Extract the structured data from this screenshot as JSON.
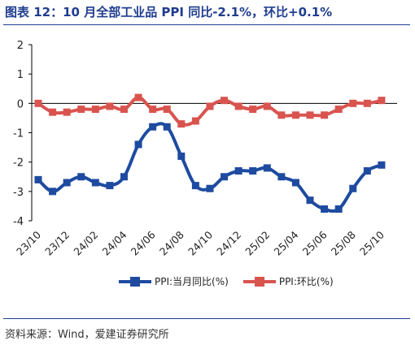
{
  "title": "图表 12：10 月全部工业品 PPI 同比-2.1%，环比+0.1%",
  "source": "资料来源：Wind，爱建证券研究所",
  "colors": {
    "title": "#1F3D8F",
    "yoy": "#1E4BA0",
    "mom": "#D9544F",
    "axis": "#000000"
  },
  "chart_data": {
    "type": "line",
    "x": [
      "23/10",
      "23/11",
      "23/12",
      "24/01",
      "24/02",
      "24/03",
      "24/04",
      "24/05",
      "24/06",
      "24/07",
      "24/08",
      "24/09",
      "24/10",
      "24/11",
      "24/12",
      "25/01",
      "25/02",
      "25/03",
      "25/04",
      "25/05",
      "25/06",
      "25/07",
      "25/08",
      "25/09",
      "25/10"
    ],
    "x_tick_labels": [
      "23/10",
      "23/12",
      "24/02",
      "24/04",
      "24/06",
      "24/08",
      "24/10",
      "24/12",
      "25/02",
      "25/04",
      "25/06",
      "25/08",
      "25/10"
    ],
    "y_tick_labels": [
      "2",
      "1",
      "0",
      "-1",
      "-2",
      "-3",
      "-4"
    ],
    "ylim": [
      -4,
      2
    ],
    "series": [
      {
        "name": "PPI:当月同比(%)",
        "values": [
          -2.6,
          -3.0,
          -2.7,
          -2.5,
          -2.7,
          -2.8,
          -2.5,
          -1.4,
          -0.8,
          -0.8,
          -1.8,
          -2.8,
          -2.9,
          -2.5,
          -2.3,
          -2.3,
          -2.2,
          -2.5,
          -2.7,
          -3.3,
          -3.6,
          -3.6,
          -2.9,
          -2.3,
          -2.1
        ]
      },
      {
        "name": "PPI:环比(%)",
        "values": [
          0.0,
          -0.3,
          -0.3,
          -0.2,
          -0.2,
          -0.1,
          -0.2,
          0.2,
          -0.2,
          -0.2,
          -0.7,
          -0.6,
          -0.1,
          0.1,
          -0.1,
          -0.2,
          -0.1,
          -0.4,
          -0.4,
          -0.4,
          -0.4,
          -0.2,
          0.0,
          0.0,
          0.1
        ]
      }
    ],
    "legend_position": "bottom",
    "grid": false
  }
}
